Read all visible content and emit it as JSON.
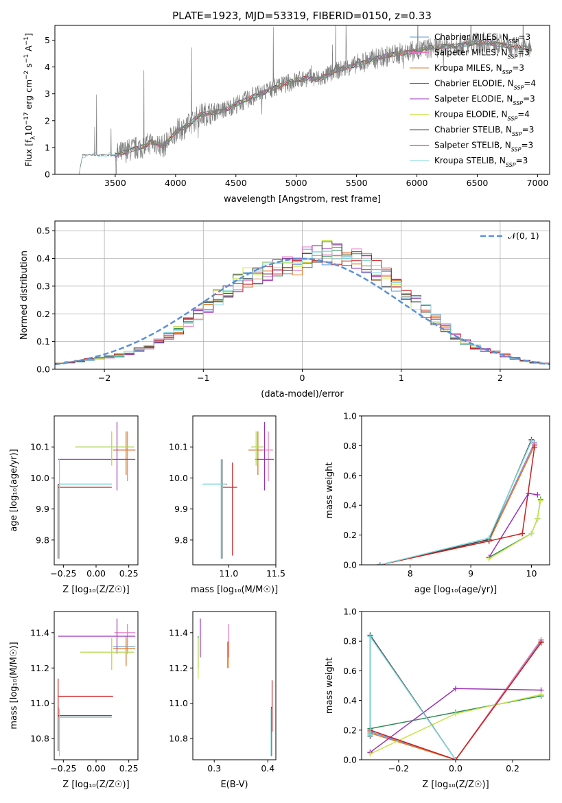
{
  "figure_title": "PLATE=1923, MJD=53319, FIBERID=0150, z=0.33",
  "colors": {
    "chabrier_miles": "#5b9bd5",
    "salpeter_miles": "#e377c2",
    "kroupa_miles": "#e07b26",
    "chabrier_elodie": "#2e8b57",
    "salpeter_elodie": "#9b30b8",
    "kroupa_elodie": "#c8e64a",
    "chabrier_stelib": "#404040",
    "salpeter_stelib": "#cc1f1f",
    "kroupa_stelib": "#7fd6dc",
    "data": "#808080",
    "normal": "#5b8fd6",
    "grid": "#b0b0b0"
  },
  "chart_data": [
    {
      "type": "line",
      "panel": "spectrum",
      "title": "PLATE=1923, MJD=53319, FIBERID=0150, z=0.33",
      "xlabel": "wavelength [Angstrom, rest frame]",
      "ylabel_parts": [
        "Flux [f",
        "λ",
        "10",
        "−17",
        " erg cm",
        "−2",
        " s",
        "−1",
        " A",
        "−1",
        "]"
      ],
      "xlim": [
        3000,
        7100
      ],
      "ylim": [
        0,
        5.55
      ],
      "xticks": [
        3500,
        4000,
        4500,
        5000,
        5500,
        6000,
        6500,
        7000
      ],
      "yticks": [
        0,
        1,
        2,
        3,
        4,
        5
      ],
      "grid": false,
      "legend_position": "upper right",
      "legend": [
        {
          "name": "Chabrier MILES",
          "nssp": "3",
          "color_key": "chabrier_miles"
        },
        {
          "name": "Salpeter MILES",
          "nssp": "3",
          "color_key": "salpeter_miles"
        },
        {
          "name": "Kroupa MILES",
          "nssp": "3",
          "color_key": "kroupa_miles"
        },
        {
          "name": "Chabrier ELODIE",
          "nssp": "4",
          "color_key": "chabrier_elodie"
        },
        {
          "name": "Salpeter ELODIE",
          "nssp": "3",
          "color_key": "salpeter_elodie"
        },
        {
          "name": "Kroupa ELODIE",
          "nssp": "4",
          "color_key": "kroupa_elodie"
        },
        {
          "name": "Chabrier STELIB",
          "nssp": "3",
          "color_key": "chabrier_stelib"
        },
        {
          "name": "Salpeter STELIB",
          "nssp": "3",
          "color_key": "salpeter_stelib"
        },
        {
          "name": "Kroupa STELIB",
          "nssp": "3",
          "color_key": "kroupa_stelib"
        }
      ],
      "continuum": {
        "x": [
          3200,
          3230,
          3400,
          3500,
          3550,
          3650,
          3750,
          3800,
          3900,
          3950,
          4000,
          4100,
          4200,
          4300,
          4400,
          4500,
          4600,
          4700,
          4800,
          4900,
          5000,
          5100,
          5200,
          5300,
          5400,
          5500,
          5600,
          5700,
          5800,
          5900,
          6000,
          6100,
          6200,
          6300,
          6400,
          6500,
          6600,
          6700,
          6800,
          6900,
          6950
        ],
        "y": [
          0.0,
          0.72,
          0.72,
          0.7,
          0.8,
          0.95,
          1.05,
          1.2,
          1.05,
          1.3,
          1.6,
          1.8,
          2.2,
          2.3,
          2.4,
          2.6,
          2.8,
          3.0,
          3.2,
          3.35,
          3.5,
          3.6,
          3.55,
          3.8,
          3.95,
          4.1,
          4.25,
          4.35,
          4.45,
          4.55,
          4.6,
          4.7,
          4.75,
          4.8,
          4.85,
          4.9,
          4.9,
          4.85,
          4.75,
          4.7,
          4.65
        ]
      },
      "data_range": [
        3200,
        6950
      ]
    },
    {
      "type": "bar",
      "panel": "residual_histogram",
      "xlabel": "(data-model)/error",
      "ylabel": "Normed distribution",
      "xlim": [
        -2.5,
        2.5
      ],
      "ylim": [
        0,
        0.535
      ],
      "xticks": [
        -2,
        -1,
        0,
        1,
        2
      ],
      "yticks": [
        0.0,
        0.1,
        0.2,
        0.3,
        0.4,
        0.5
      ],
      "grid": true,
      "legend_label": "𝒩(0, 1)",
      "legend_position": "upper right",
      "bins_edge_start": -2.5,
      "bin_width": 0.1,
      "base_density": [
        0.02,
        0.025,
        0.03,
        0.035,
        0.04,
        0.045,
        0.05,
        0.06,
        0.07,
        0.08,
        0.1,
        0.12,
        0.14,
        0.17,
        0.2,
        0.23,
        0.26,
        0.29,
        0.31,
        0.33,
        0.34,
        0.35,
        0.36,
        0.37,
        0.38,
        0.4,
        0.41,
        0.42,
        0.42,
        0.41,
        0.4,
        0.38,
        0.36,
        0.33,
        0.3,
        0.27,
        0.24,
        0.21,
        0.18,
        0.15,
        0.12,
        0.1,
        0.08,
        0.07,
        0.06,
        0.05,
        0.04,
        0.03,
        0.025,
        0.02
      ]
    },
    {
      "type": "scatter",
      "panel": "age_vs_Z",
      "xlabel": "Z [log₁₀(Z/Z☉)]",
      "ylabel": "age  [log₁₀(age/yr)]",
      "xlim": [
        -0.32,
        0.32
      ],
      "ylim": [
        9.72,
        10.2
      ],
      "xticks": [
        -0.25,
        0.0,
        0.25
      ],
      "xtick_labels": [
        "−0.25",
        "0.00",
        "0.25"
      ],
      "yticks": [
        9.8,
        9.9,
        10.0,
        10.1
      ],
      "errorbars": [
        {
          "series": "chabrier_miles",
          "x": 0.23,
          "xerr": [
            0.1,
            0.07
          ],
          "y": 10.09,
          "yerr": [
            0.08,
            0.06
          ]
        },
        {
          "series": "salpeter_miles",
          "x": 0.24,
          "xerr": [
            0.1,
            0.06
          ],
          "y": 10.09,
          "yerr": [
            0.1,
            0.06
          ]
        },
        {
          "series": "kroupa_miles",
          "x": 0.23,
          "xerr": [
            0.1,
            0.07
          ],
          "y": 10.09,
          "yerr": [
            0.08,
            0.06
          ]
        },
        {
          "series": "chabrier_elodie",
          "x": 0.12,
          "xerr": [
            0.28,
            0.17
          ],
          "y": 10.1,
          "yerr": [
            0.06,
            0.05
          ]
        },
        {
          "series": "salpeter_elodie",
          "x": 0.16,
          "xerr": [
            0.45,
            0.14
          ],
          "y": 10.06,
          "yerr": [
            0.1,
            0.12
          ]
        },
        {
          "series": "kroupa_elodie",
          "x": 0.12,
          "xerr": [
            0.28,
            0.17
          ],
          "y": 10.1,
          "yerr": [
            0.06,
            0.05
          ]
        },
        {
          "series": "chabrier_stelib",
          "x": -0.29,
          "xerr": [
            0.0,
            0.41
          ],
          "y": 9.98,
          "yerr": [
            0.24,
            0.0
          ]
        },
        {
          "series": "salpeter_stelib",
          "x": -0.29,
          "xerr": [
            0.0,
            0.41
          ],
          "y": 9.97,
          "yerr": [
            0.0,
            0.0
          ]
        },
        {
          "series": "kroupa_stelib",
          "x": -0.28,
          "xerr": [
            0.0,
            0.4
          ],
          "y": 9.98,
          "yerr": [
            0.24,
            0.08
          ]
        }
      ]
    },
    {
      "type": "scatter",
      "panel": "age_vs_mass",
      "xlabel": "mass [log₁₀(M/M☉)]",
      "ylabel": "",
      "xlim": [
        10.62,
        11.5
      ],
      "ylim": [
        9.72,
        10.2
      ],
      "xticks": [
        11.0,
        11.5
      ],
      "xtick_labels": [
        "11.0",
        "11.5"
      ],
      "yticks": [
        9.8,
        9.9,
        10.0,
        10.1
      ],
      "errorbars": [
        {
          "series": "chabrier_miles",
          "x": 11.31,
          "xerr": [
            0.1,
            0.05
          ],
          "y": 10.09,
          "yerr": [
            0.08,
            0.06
          ]
        },
        {
          "series": "salpeter_miles",
          "x": 11.42,
          "xerr": [
            0.1,
            0.05
          ],
          "y": 10.09,
          "yerr": [
            0.1,
            0.06
          ]
        },
        {
          "series": "kroupa_miles",
          "x": 11.31,
          "xerr": [
            0.1,
            0.05
          ],
          "y": 10.09,
          "yerr": [
            0.08,
            0.06
          ]
        },
        {
          "series": "chabrier_elodie",
          "x": 11.29,
          "xerr": [
            0.05,
            0.08
          ],
          "y": 10.1,
          "yerr": [
            0.06,
            0.05
          ]
        },
        {
          "series": "salpeter_elodie",
          "x": 11.38,
          "xerr": [
            0.1,
            0.1
          ],
          "y": 10.06,
          "yerr": [
            0.1,
            0.12
          ]
        },
        {
          "series": "kroupa_elodie",
          "x": 11.29,
          "xerr": [
            0.05,
            0.08
          ],
          "y": 10.1,
          "yerr": [
            0.06,
            0.05
          ]
        },
        {
          "series": "chabrier_stelib",
          "x": 10.93,
          "xerr": [
            0.2,
            0.05
          ],
          "y": 9.98,
          "yerr": [
            0.24,
            0.08
          ]
        },
        {
          "series": "salpeter_stelib",
          "x": 11.04,
          "xerr": [
            0.1,
            0.05
          ],
          "y": 9.97,
          "yerr": [
            0.22,
            0.08
          ]
        },
        {
          "series": "kroupa_stelib",
          "x": 10.92,
          "xerr": [
            0.2,
            0.05
          ],
          "y": 9.98,
          "yerr": [
            0.24,
            0.08
          ]
        }
      ]
    },
    {
      "type": "line",
      "panel": "mass_weight_vs_age",
      "xlabel": "age  [log₁₀(age/yr)]",
      "ylabel": "mass weight",
      "xlim": [
        7.2,
        10.3
      ],
      "ylim": [
        0,
        1.0
      ],
      "xticks": [
        8,
        9,
        10
      ],
      "yticks": [
        0.0,
        0.2,
        0.4,
        0.6,
        0.8,
        1.0
      ],
      "series": [
        {
          "name": "chabrier_miles",
          "x": [
            7.5,
            9.3,
            10.05
          ],
          "y": [
            0.0,
            0.17,
            0.82
          ]
        },
        {
          "name": "salpeter_miles",
          "x": [
            7.5,
            9.3,
            10.05
          ],
          "y": [
            0.0,
            0.16,
            0.81
          ]
        },
        {
          "name": "kroupa_miles",
          "x": [
            7.5,
            9.3,
            10.05
          ],
          "y": [
            0.0,
            0.16,
            0.8
          ]
        },
        {
          "name": "chabrier_elodie",
          "x": [
            9.3,
            10.0,
            10.1,
            10.15
          ],
          "y": [
            0.05,
            0.21,
            0.31,
            0.44
          ]
        },
        {
          "name": "salpeter_elodie",
          "x": [
            9.3,
            9.95,
            10.1
          ],
          "y": [
            0.05,
            0.48,
            0.47
          ]
        },
        {
          "name": "kroupa_elodie",
          "x": [
            9.3,
            10.0,
            10.1,
            10.15
          ],
          "y": [
            0.04,
            0.21,
            0.31,
            0.43
          ]
        },
        {
          "name": "chabrier_stelib",
          "x": [
            7.5,
            9.3,
            10.0
          ],
          "y": [
            0.0,
            0.17,
            0.84
          ]
        },
        {
          "name": "salpeter_stelib",
          "x": [
            7.5,
            9.3,
            9.85,
            10.05
          ],
          "y": [
            0.0,
            0.16,
            0.21,
            0.79
          ]
        },
        {
          "name": "kroupa_stelib",
          "x": [
            7.5,
            9.3,
            10.0
          ],
          "y": [
            0.0,
            0.18,
            0.83
          ]
        }
      ]
    },
    {
      "type": "scatter",
      "panel": "mass_vs_Z",
      "xlabel": "Z [log₁₀(Z/Z☉)]",
      "ylabel": "mass [log₁₀(M/M☉)]",
      "xlim": [
        -0.32,
        0.32
      ],
      "ylim": [
        10.68,
        11.52
      ],
      "xticks": [
        -0.25,
        0.0,
        0.25
      ],
      "xtick_labels": [
        "−0.25",
        "0.00",
        "0.25"
      ],
      "yticks": [
        10.8,
        11.0,
        11.2,
        11.4
      ],
      "errorbars": [
        {
          "series": "chabrier_miles",
          "x": 0.23,
          "xerr": [
            0.1,
            0.07
          ],
          "y": 11.32,
          "yerr": [
            0.1,
            0.06
          ]
        },
        {
          "series": "salpeter_miles",
          "x": 0.24,
          "xerr": [
            0.1,
            0.06
          ],
          "y": 11.4,
          "yerr": [
            0.12,
            0.05
          ]
        },
        {
          "series": "kroupa_miles",
          "x": 0.23,
          "xerr": [
            0.1,
            0.07
          ],
          "y": 11.31,
          "yerr": [
            0.1,
            0.06
          ]
        },
        {
          "series": "chabrier_elodie",
          "x": 0.12,
          "xerr": [
            0.24,
            0.17
          ],
          "y": 11.29,
          "yerr": [
            0.1,
            0.08
          ]
        },
        {
          "series": "salpeter_elodie",
          "x": 0.16,
          "xerr": [
            0.45,
            0.14
          ],
          "y": 11.38,
          "yerr": [
            0.1,
            0.1
          ]
        },
        {
          "series": "kroupa_elodie",
          "x": 0.12,
          "xerr": [
            0.24,
            0.17
          ],
          "y": 11.29,
          "yerr": [
            0.1,
            0.08
          ]
        },
        {
          "series": "chabrier_stelib",
          "x": -0.29,
          "xerr": [
            0.0,
            0.41
          ],
          "y": 10.93,
          "yerr": [
            0.2,
            0.05
          ]
        },
        {
          "series": "salpeter_stelib",
          "x": -0.29,
          "xerr": [
            0.0,
            0.42
          ],
          "y": 11.04,
          "yerr": [
            0.12,
            0.1
          ]
        },
        {
          "series": "kroupa_stelib",
          "x": -0.28,
          "xerr": [
            0.0,
            0.4
          ],
          "y": 10.92,
          "yerr": [
            0.22,
            0.05
          ]
        }
      ]
    },
    {
      "type": "scatter",
      "panel": "mass_vs_ebv",
      "xlabel": "E(B-V)",
      "ylabel": "",
      "xlim": [
        0.26,
        0.415
      ],
      "ylim": [
        10.68,
        11.52
      ],
      "xticks": [
        0.3,
        0.4
      ],
      "xtick_labels": [
        "0.3",
        "0.4"
      ],
      "yticks": [
        10.8,
        11.0,
        11.2,
        11.4
      ],
      "errorbars": [
        {
          "series": "chabrier_miles",
          "x": 0.325,
          "y": 11.3,
          "yerr": [
            0.1,
            0.05
          ]
        },
        {
          "series": "salpeter_miles",
          "x": 0.327,
          "y": 11.4,
          "yerr": [
            0.14,
            0.05
          ]
        },
        {
          "series": "kroupa_miles",
          "x": 0.326,
          "y": 11.3,
          "yerr": [
            0.1,
            0.05
          ]
        },
        {
          "series": "chabrier_elodie",
          "x": 0.27,
          "y": 11.3,
          "yerr": [
            0.1,
            0.08
          ]
        },
        {
          "series": "salpeter_elodie",
          "x": 0.274,
          "y": 11.38,
          "yerr": [
            0.12,
            0.1
          ]
        },
        {
          "series": "kroupa_elodie",
          "x": 0.27,
          "y": 11.29,
          "yerr": [
            0.15,
            0.08
          ]
        },
        {
          "series": "chabrier_stelib",
          "x": 0.407,
          "y": 10.93,
          "yerr": [
            0.23,
            0.05
          ]
        },
        {
          "series": "salpeter_stelib",
          "x": 0.408,
          "y": 11.04,
          "yerr": [
            0.2,
            0.09
          ]
        },
        {
          "series": "kroupa_stelib",
          "x": 0.406,
          "y": 10.92,
          "yerr": [
            0.22,
            0.05
          ]
        }
      ]
    },
    {
      "type": "line",
      "panel": "mass_weight_vs_Z",
      "xlabel": "Z [log₁₀(Z/Z☉)]",
      "ylabel": "mass weight",
      "xlim": [
        -0.33,
        0.33
      ],
      "ylim": [
        0,
        1.0
      ],
      "xticks": [
        -0.2,
        0.0,
        0.2
      ],
      "xtick_labels": [
        "−0.2",
        "0.0",
        "0.2"
      ],
      "yticks": [
        0.0,
        0.2,
        0.4,
        0.6,
        0.8,
        1.0
      ],
      "series": [
        {
          "name": "chabrier_miles",
          "x": [
            -0.3,
            0.0,
            0.3
          ],
          "y": [
            0.19,
            0.0,
            0.8
          ]
        },
        {
          "name": "salpeter_miles",
          "x": [
            -0.3,
            0.0,
            0.3
          ],
          "y": [
            0.2,
            0.0,
            0.81
          ]
        },
        {
          "name": "kroupa_miles",
          "x": [
            -0.3,
            0.0,
            0.3
          ],
          "y": [
            0.18,
            0.0,
            0.79
          ]
        },
        {
          "name": "chabrier_elodie",
          "x": [
            -0.3,
            0.0,
            0.3
          ],
          "y": [
            0.21,
            0.32,
            0.43
          ]
        },
        {
          "name": "salpeter_elodie",
          "x": [
            -0.3,
            -0.3,
            0.0,
            0.3
          ],
          "y": [
            0.05,
            0.05,
            0.48,
            0.47
          ]
        },
        {
          "name": "kroupa_elodie",
          "x": [
            -0.3,
            0.0,
            0.3
          ],
          "y": [
            0.04,
            0.31,
            0.44
          ]
        },
        {
          "name": "chabrier_stelib",
          "x": [
            -0.3,
            -0.3,
            0.0
          ],
          "y": [
            0.16,
            0.84,
            0.0
          ]
        },
        {
          "name": "salpeter_stelib",
          "x": [
            -0.3,
            0.0,
            0.3
          ],
          "y": [
            0.2,
            0.0,
            0.79
          ]
        },
        {
          "name": "kroupa_stelib",
          "x": [
            -0.3,
            -0.3,
            0.0
          ],
          "y": [
            0.17,
            0.83,
            0.0
          ]
        }
      ]
    }
  ]
}
